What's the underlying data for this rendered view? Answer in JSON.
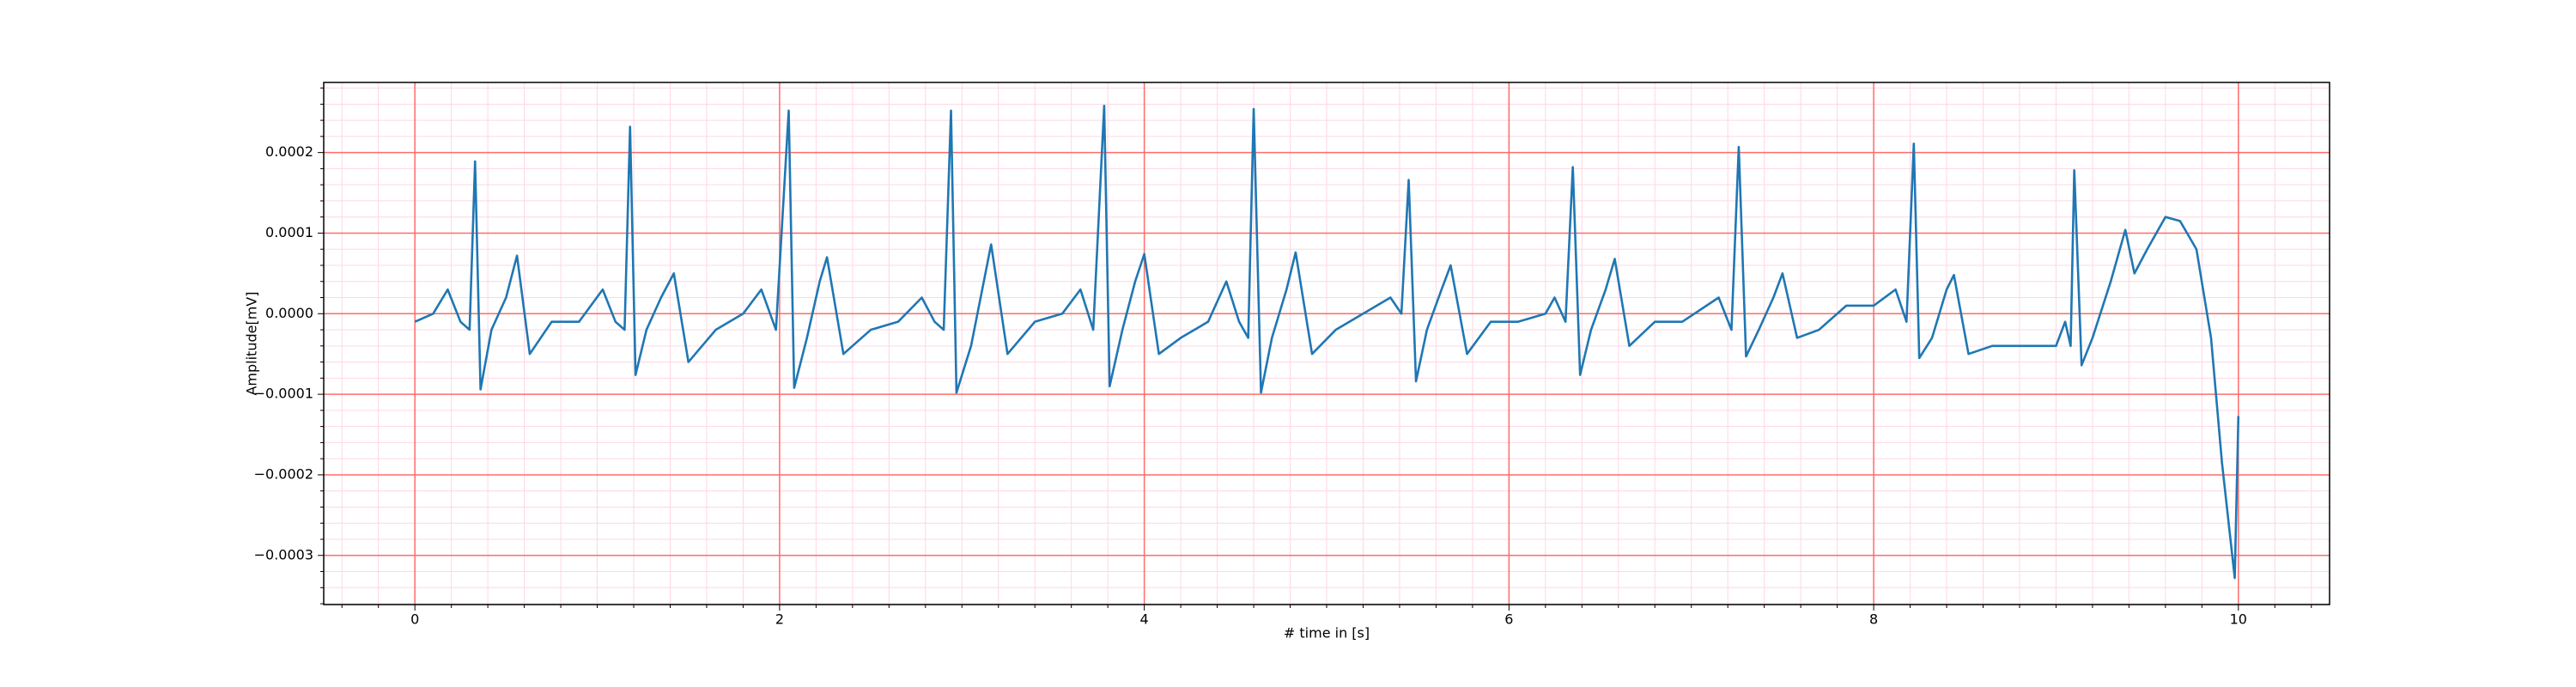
{
  "chart_data": {
    "type": "line",
    "xlabel": "# time in [s]",
    "ylabel": "Amplitude[mV]",
    "xlim": [
      -0.5,
      10.5
    ],
    "ylim": [
      -0.000361,
      0.000287
    ],
    "xticks": [
      0,
      2,
      4,
      6,
      8,
      10
    ],
    "yticks": [
      {
        "value": -0.0003,
        "label": "−0.0003"
      },
      {
        "value": -0.0002,
        "label": "−0.0002"
      },
      {
        "value": -0.0001,
        "label": "−0.0001"
      },
      {
        "value": 0,
        "label": "0.0000"
      },
      {
        "value": 0.0001,
        "label": "0.0001"
      },
      {
        "value": 0.0002,
        "label": "0.0002"
      }
    ],
    "xticks_minor": [
      -0.4,
      -0.2,
      0.2,
      0.4,
      0.6,
      0.8,
      1.0,
      1.2,
      1.4,
      1.6,
      1.8,
      2.2,
      2.4,
      2.6,
      2.8,
      3.0,
      3.2,
      3.4,
      3.6,
      3.8,
      4.2,
      4.4,
      4.6,
      4.8,
      5.0,
      5.2,
      5.4,
      5.6,
      5.8,
      6.2,
      6.4,
      6.6,
      6.8,
      7.0,
      7.2,
      7.4,
      7.6,
      7.8,
      8.2,
      8.4,
      8.6,
      8.8,
      9.0,
      9.2,
      9.4,
      9.6,
      9.8,
      10.2,
      10.4
    ],
    "yticks_minor": [
      -0.00036,
      -0.00034,
      -0.00032,
      -0.00028,
      -0.00026,
      -0.00024,
      -0.00022,
      -0.00018,
      -0.00016,
      -0.00014,
      -0.00012,
      -8e-05,
      -6e-05,
      -4e-05,
      -2e-05,
      2e-05,
      4e-05,
      6e-05,
      8e-05,
      0.00012,
      0.00014,
      0.00016,
      0.00018,
      0.00022,
      0.00024,
      0.00026,
      0.00028
    ],
    "grid": true,
    "grid_color": "#ff6b6b",
    "minor_grid_color": "#ffd6e4",
    "series": [
      {
        "color": "#1f77b4",
        "x": [
          0.0,
          0.1,
          0.18,
          0.25,
          0.3,
          0.33,
          0.36,
          0.42,
          0.5,
          0.56,
          0.63,
          0.75,
          0.9,
          1.03,
          1.1,
          1.15,
          1.18,
          1.21,
          1.27,
          1.35,
          1.42,
          1.5,
          1.65,
          1.8,
          1.9,
          1.98,
          2.05,
          2.08,
          2.15,
          2.22,
          2.26,
          2.35,
          2.5,
          2.65,
          2.78,
          2.85,
          2.9,
          2.94,
          2.97,
          3.05,
          3.12,
          3.16,
          3.25,
          3.4,
          3.55,
          3.65,
          3.72,
          3.78,
          3.81,
          3.88,
          3.95,
          4.0,
          4.08,
          4.2,
          4.35,
          4.45,
          4.52,
          4.57,
          4.6,
          4.64,
          4.7,
          4.78,
          4.83,
          4.92,
          5.05,
          5.2,
          5.35,
          5.41,
          5.45,
          5.49,
          5.55,
          5.63,
          5.68,
          5.77,
          5.9,
          6.05,
          6.2,
          6.25,
          6.31,
          6.35,
          6.39,
          6.45,
          6.53,
          6.58,
          6.66,
          6.8,
          6.95,
          7.15,
          7.22,
          7.26,
          7.3,
          7.37,
          7.45,
          7.5,
          7.58,
          7.7,
          7.85,
          8.0,
          8.12,
          8.18,
          8.22,
          8.25,
          8.32,
          8.4,
          8.44,
          8.52,
          8.65,
          8.8,
          9.0,
          9.05,
          9.08,
          9.1,
          9.14,
          9.2,
          9.3,
          9.38,
          9.43,
          9.5,
          9.6,
          9.68,
          9.77,
          9.85,
          9.91,
          9.98,
          10.0
        ],
        "values": [
          -1e-05,
          0.0,
          3e-05,
          -1e-05,
          -2e-05,
          0.000189,
          -9.4e-05,
          -2e-05,
          2e-05,
          7.2e-05,
          -5e-05,
          -1e-05,
          -1e-05,
          3e-05,
          -1e-05,
          -2e-05,
          0.000232,
          -7.6e-05,
          -2e-05,
          2e-05,
          5e-05,
          -6e-05,
          -2e-05,
          0.0,
          3e-05,
          -2e-05,
          0.000252,
          -9.2e-05,
          -3e-05,
          4e-05,
          7e-05,
          -5e-05,
          -2e-05,
          -1e-05,
          2e-05,
          -1e-05,
          -2e-05,
          0.000252,
          -9.8e-05,
          -4e-05,
          4e-05,
          8.6e-05,
          -5e-05,
          -1e-05,
          0.0,
          3e-05,
          -2e-05,
          0.000258,
          -9e-05,
          -2e-05,
          4e-05,
          7.4e-05,
          -5e-05,
          -3e-05,
          -1e-05,
          4e-05,
          -1e-05,
          -3e-05,
          0.000254,
          -9.8e-05,
          -3e-05,
          3e-05,
          7.6e-05,
          -5e-05,
          -2e-05,
          0.0,
          2e-05,
          0.0,
          0.000166,
          -8.4e-05,
          -2e-05,
          3e-05,
          6e-05,
          -5e-05,
          -1e-05,
          -1e-05,
          0.0,
          2e-05,
          -1e-05,
          0.000182,
          -7.6e-05,
          -2e-05,
          3e-05,
          6.8e-05,
          -4e-05,
          -1e-05,
          -1e-05,
          2e-05,
          -2e-05,
          0.000207,
          -5.3e-05,
          -2e-05,
          2e-05,
          5e-05,
          -3e-05,
          -2e-05,
          1e-05,
          1e-05,
          3e-05,
          -1e-05,
          0.000211,
          -5.5e-05,
          -3e-05,
          3e-05,
          4.8e-05,
          -5e-05,
          -4e-05,
          -4e-05,
          -4e-05,
          -1e-05,
          -4e-05,
          0.000178,
          -6.4e-05,
          -3e-05,
          4e-05,
          0.000104,
          5e-05,
          8e-05,
          0.00012,
          0.000115,
          8e-05,
          -3e-05,
          -0.000185,
          -0.000328,
          -0.000127
        ]
      }
    ]
  }
}
